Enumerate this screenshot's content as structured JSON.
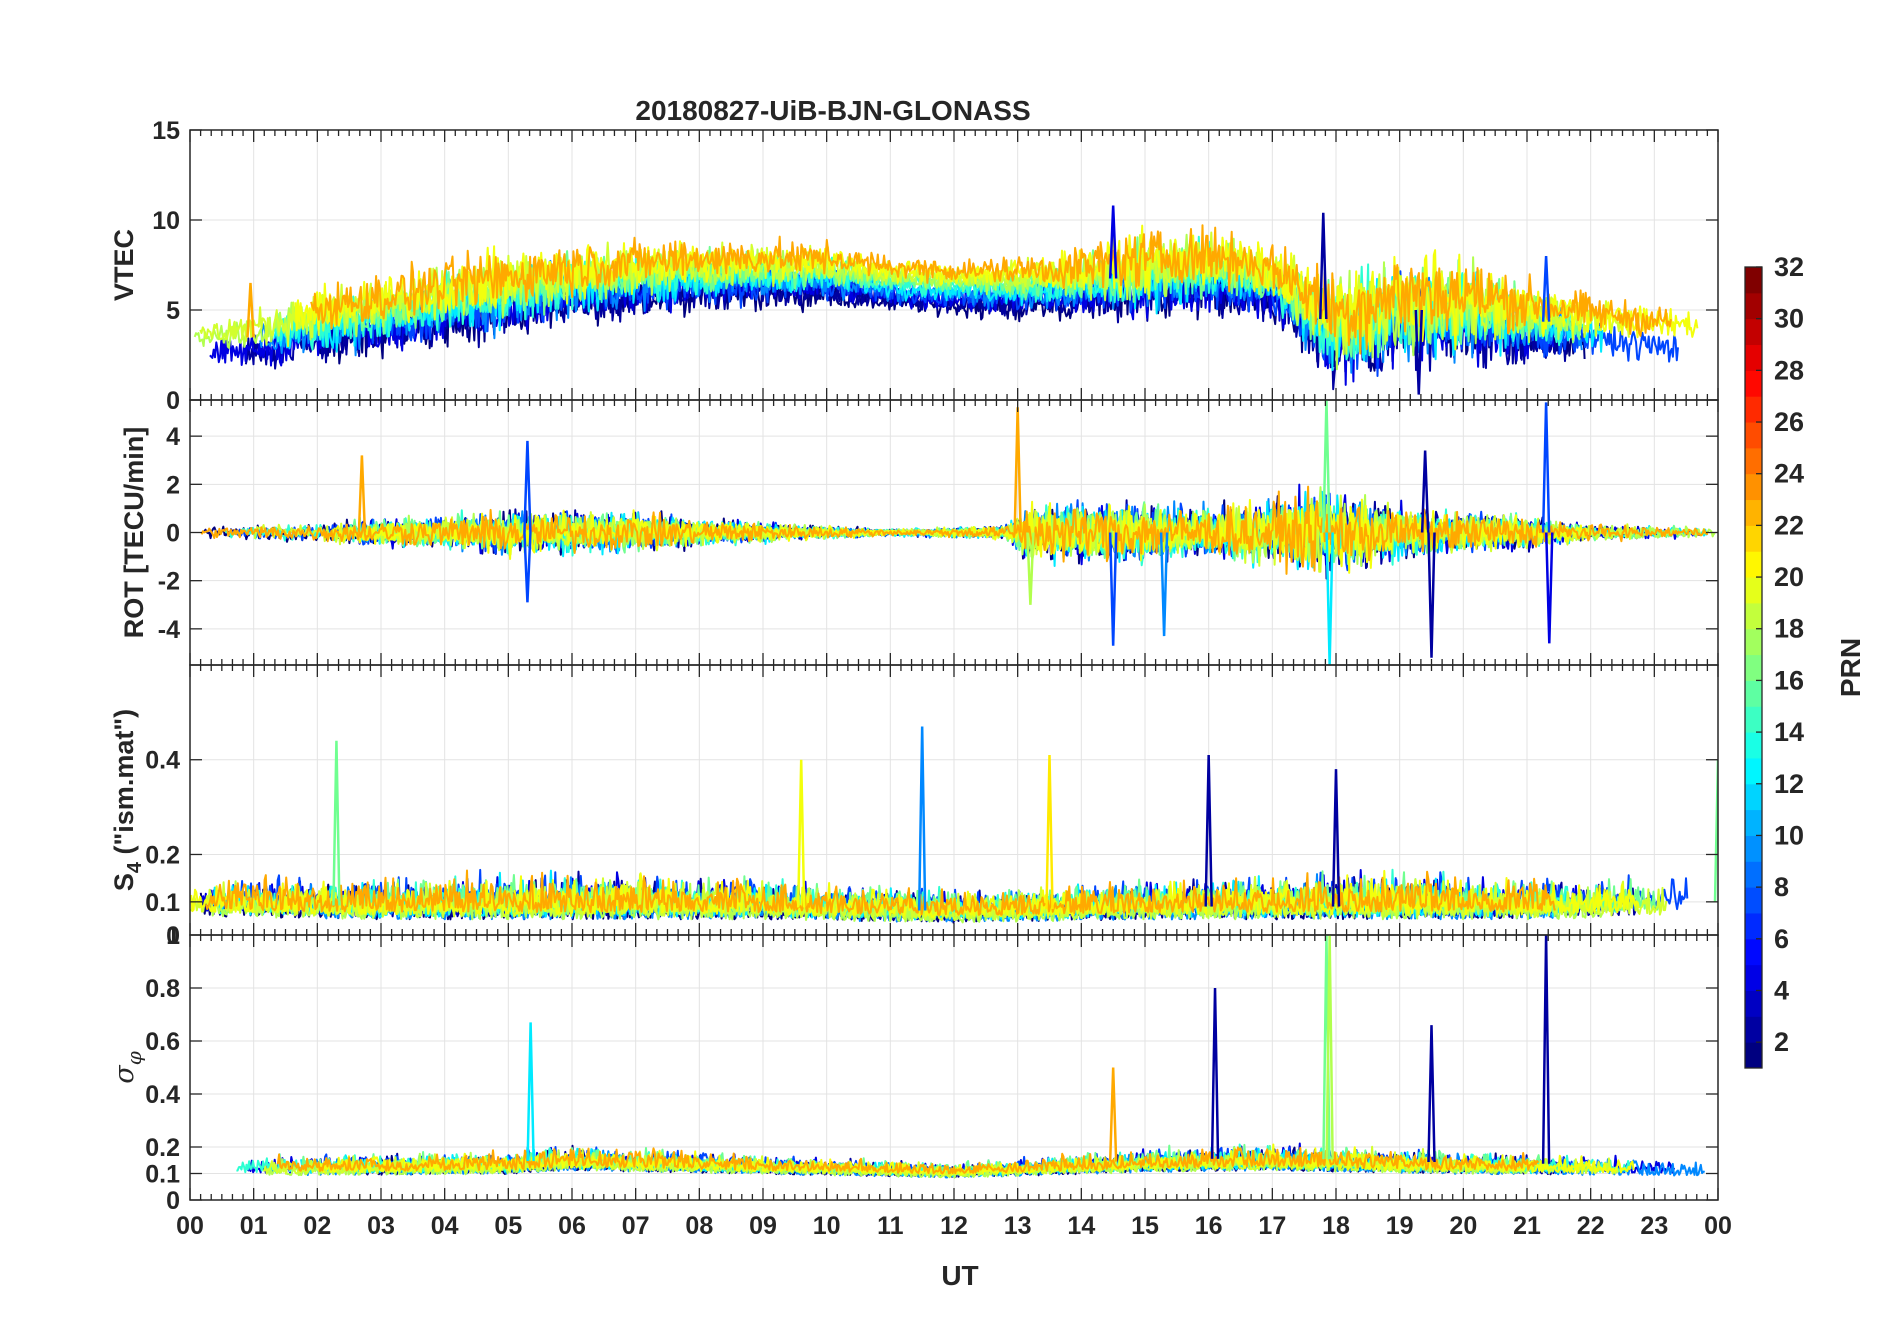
{
  "title": "20180827-UiB-BJN-GLONASS",
  "chart_data": {
    "type": "line",
    "x_range_hours": [
      0,
      24
    ],
    "x_tick_labels": [
      "00",
      "01",
      "02",
      "03",
      "04",
      "05",
      "06",
      "07",
      "08",
      "09",
      "10",
      "11",
      "12",
      "13",
      "14",
      "15",
      "16",
      "17",
      "18",
      "19",
      "20",
      "21",
      "22",
      "23",
      "00"
    ],
    "xlabel": "UT",
    "grid": true,
    "colorbar": {
      "label": "PRN",
      "range": [
        1,
        32
      ],
      "tick_labels": [
        "2",
        "4",
        "6",
        "8",
        "10",
        "12",
        "14",
        "16",
        "18",
        "20",
        "22",
        "24",
        "26",
        "28",
        "30",
        "32"
      ]
    },
    "series_prns": [
      1,
      2,
      4,
      7,
      9,
      12,
      14,
      16,
      18,
      19,
      20,
      23
    ],
    "panels": [
      {
        "name": "vtec",
        "ylabel": "VTEC",
        "ylim": [
          0,
          15
        ],
        "y_ticks": [
          0,
          5,
          10,
          15
        ],
        "y_tick_labels": [
          "0",
          "5",
          "10",
          "15"
        ],
        "envelope": [
          {
            "t": 0,
            "mean": 3.0,
            "noise": 0.5
          },
          {
            "t": 1,
            "mean": 3.5,
            "noise": 0.8
          },
          {
            "t": 2,
            "mean": 4.2,
            "noise": 1.0
          },
          {
            "t": 3,
            "mean": 4.8,
            "noise": 1.1
          },
          {
            "t": 4,
            "mean": 5.5,
            "noise": 1.2
          },
          {
            "t": 5,
            "mean": 6.0,
            "noise": 1.3
          },
          {
            "t": 6,
            "mean": 6.5,
            "noise": 1.2
          },
          {
            "t": 7,
            "mean": 6.8,
            "noise": 1.0
          },
          {
            "t": 8,
            "mean": 7.0,
            "noise": 0.9
          },
          {
            "t": 9,
            "mean": 7.0,
            "noise": 0.8
          },
          {
            "t": 10,
            "mean": 7.0,
            "noise": 0.7
          },
          {
            "t": 11,
            "mean": 6.5,
            "noise": 0.5
          },
          {
            "t": 12,
            "mean": 6.3,
            "noise": 0.5
          },
          {
            "t": 13,
            "mean": 6.3,
            "noise": 0.7
          },
          {
            "t": 14,
            "mean": 6.5,
            "noise": 1.0
          },
          {
            "t": 15,
            "mean": 7.0,
            "noise": 1.3
          },
          {
            "t": 16,
            "mean": 7.2,
            "noise": 1.3
          },
          {
            "t": 17,
            "mean": 6.5,
            "noise": 1.0
          },
          {
            "t": 18,
            "mean": 4.0,
            "noise": 2.0
          },
          {
            "t": 19,
            "mean": 5.0,
            "noise": 2.0
          },
          {
            "t": 20,
            "mean": 5.0,
            "noise": 1.8
          },
          {
            "t": 21,
            "mean": 4.5,
            "noise": 1.2
          },
          {
            "t": 22,
            "mean": 4.0,
            "noise": 0.8
          },
          {
            "t": 23,
            "mean": 3.5,
            "noise": 0.7
          },
          {
            "t": 24,
            "mean": 3.5,
            "noise": 0.7
          }
        ],
        "spikes": [
          {
            "t": 0.95,
            "value": 6.5,
            "prn": 23
          },
          {
            "t": 14.5,
            "value": 10.8,
            "prn": 4
          },
          {
            "t": 17.8,
            "value": 10.4,
            "prn": 2
          },
          {
            "t": 19.3,
            "value": 0.3,
            "prn": 2
          },
          {
            "t": 21.3,
            "value": 8.0,
            "prn": 7
          }
        ]
      },
      {
        "name": "rot",
        "ylabel": "ROT [TECU/min]",
        "ylim": [
          -5.5,
          5.5
        ],
        "y_ticks": [
          -4,
          -2,
          0,
          2,
          4
        ],
        "y_tick_labels": [
          "-4",
          "-2",
          "0",
          "2",
          "4"
        ],
        "envelope": [
          {
            "t": 0,
            "mean": 0,
            "noise": 0.15
          },
          {
            "t": 2,
            "mean": 0,
            "noise": 0.3
          },
          {
            "t": 4,
            "mean": 0,
            "noise": 0.5
          },
          {
            "t": 5,
            "mean": 0,
            "noise": 0.7
          },
          {
            "t": 7,
            "mean": 0,
            "noise": 0.6
          },
          {
            "t": 9,
            "mean": 0,
            "noise": 0.3
          },
          {
            "t": 11,
            "mean": 0,
            "noise": 0.1
          },
          {
            "t": 12.8,
            "mean": 0,
            "noise": 0.2
          },
          {
            "t": 13.2,
            "mean": 0,
            "noise": 0.9
          },
          {
            "t": 15,
            "mean": 0,
            "noise": 0.9
          },
          {
            "t": 16,
            "mean": 0,
            "noise": 0.8
          },
          {
            "t": 17.8,
            "mean": 0,
            "noise": 1.3
          },
          {
            "t": 19,
            "mean": 0,
            "noise": 0.8
          },
          {
            "t": 21,
            "mean": 0,
            "noise": 0.5
          },
          {
            "t": 22,
            "mean": 0,
            "noise": 0.25
          },
          {
            "t": 24,
            "mean": 0,
            "noise": 0.15
          }
        ],
        "spikes": [
          {
            "t": 2.7,
            "value": 3.2,
            "prn": 23
          },
          {
            "t": 5.3,
            "value": 3.8,
            "prn": 7
          },
          {
            "t": 5.3,
            "value": -2.9,
            "prn": 7
          },
          {
            "t": 13.0,
            "value": 5.2,
            "prn": 23
          },
          {
            "t": 13.2,
            "value": -3.0,
            "prn": 18
          },
          {
            "t": 14.5,
            "value": -4.7,
            "prn": 7
          },
          {
            "t": 15.3,
            "value": -4.3,
            "prn": 9
          },
          {
            "t": 17.85,
            "value": 5.5,
            "prn": 16
          },
          {
            "t": 17.9,
            "value": -5.5,
            "prn": 12
          },
          {
            "t": 19.4,
            "value": 3.4,
            "prn": 2
          },
          {
            "t": 19.5,
            "value": -5.2,
            "prn": 2
          },
          {
            "t": 21.3,
            "value": 5.4,
            "prn": 7
          },
          {
            "t": 21.35,
            "value": -4.6,
            "prn": 4
          }
        ]
      },
      {
        "name": "s4",
        "ylabel": "S4 (\"ism.mat\")",
        "ylabel_main": "S",
        "ylabel_sub": "4",
        "ylabel_rest": " (\"ism.mat\")",
        "ylim": [
          0.03,
          0.6
        ],
        "y_ticks": [
          0.1,
          0.2,
          0.4
        ],
        "y_tick_labels": [
          "0.1",
          "0.2",
          "0.4"
        ],
        "bottom_label": "0",
        "envelope": [
          {
            "t": 0,
            "mean": 0.1,
            "noise": 0.05
          },
          {
            "t": 3,
            "mean": 0.09,
            "noise": 0.05
          },
          {
            "t": 6,
            "mean": 0.09,
            "noise": 0.06
          },
          {
            "t": 9,
            "mean": 0.09,
            "noise": 0.05
          },
          {
            "t": 12,
            "mean": 0.08,
            "noise": 0.04
          },
          {
            "t": 15,
            "mean": 0.09,
            "noise": 0.05
          },
          {
            "t": 18,
            "mean": 0.09,
            "noise": 0.06
          },
          {
            "t": 21,
            "mean": 0.09,
            "noise": 0.05
          },
          {
            "t": 24,
            "mean": 0.1,
            "noise": 0.05
          }
        ],
        "spikes": [
          {
            "t": 2.3,
            "value": 0.44,
            "prn": 16
          },
          {
            "t": 9.6,
            "value": 0.4,
            "prn": 20
          },
          {
            "t": 11.5,
            "value": 0.47,
            "prn": 9
          },
          {
            "t": 13.5,
            "value": 0.41,
            "prn": 21
          },
          {
            "t": 16.0,
            "value": 0.41,
            "prn": 2
          },
          {
            "t": 18.0,
            "value": 0.38,
            "prn": 2
          },
          {
            "t": 24.0,
            "value": 0.4,
            "prn": 16
          }
        ]
      },
      {
        "name": "sigma_phi",
        "ylabel": "σφ",
        "ylabel_main": "σ",
        "ylabel_sub": "φ",
        "ylim": [
          0,
          1
        ],
        "y_ticks": [
          0,
          0.1,
          0.2,
          0.4,
          0.6,
          0.8
        ],
        "y_tick_labels": [
          "0",
          "0.1",
          "0.2",
          "0.4",
          "0.6",
          "0.8"
        ],
        "top_label": "1",
        "envelope": [
          {
            "t": 0,
            "mean": 0.13,
            "noise": 0.04
          },
          {
            "t": 5,
            "mean": 0.14,
            "noise": 0.05
          },
          {
            "t": 6,
            "mean": 0.16,
            "noise": 0.06
          },
          {
            "t": 9,
            "mean": 0.14,
            "noise": 0.04
          },
          {
            "t": 12,
            "mean": 0.12,
            "noise": 0.03
          },
          {
            "t": 15,
            "mean": 0.15,
            "noise": 0.05
          },
          {
            "t": 17,
            "mean": 0.16,
            "noise": 0.06
          },
          {
            "t": 20,
            "mean": 0.14,
            "noise": 0.05
          },
          {
            "t": 24,
            "mean": 0.13,
            "noise": 0.04
          }
        ],
        "spikes": [
          {
            "t": 5.35,
            "value": 0.67,
            "prn": 12
          },
          {
            "t": 14.5,
            "value": 0.5,
            "prn": 23
          },
          {
            "t": 16.1,
            "value": 0.8,
            "prn": 2
          },
          {
            "t": 17.85,
            "value": 1.0,
            "prn": 16
          },
          {
            "t": 17.9,
            "value": 1.0,
            "prn": 18
          },
          {
            "t": 19.5,
            "value": 0.66,
            "prn": 2
          },
          {
            "t": 21.3,
            "value": 1.0,
            "prn": 2
          }
        ]
      }
    ]
  }
}
